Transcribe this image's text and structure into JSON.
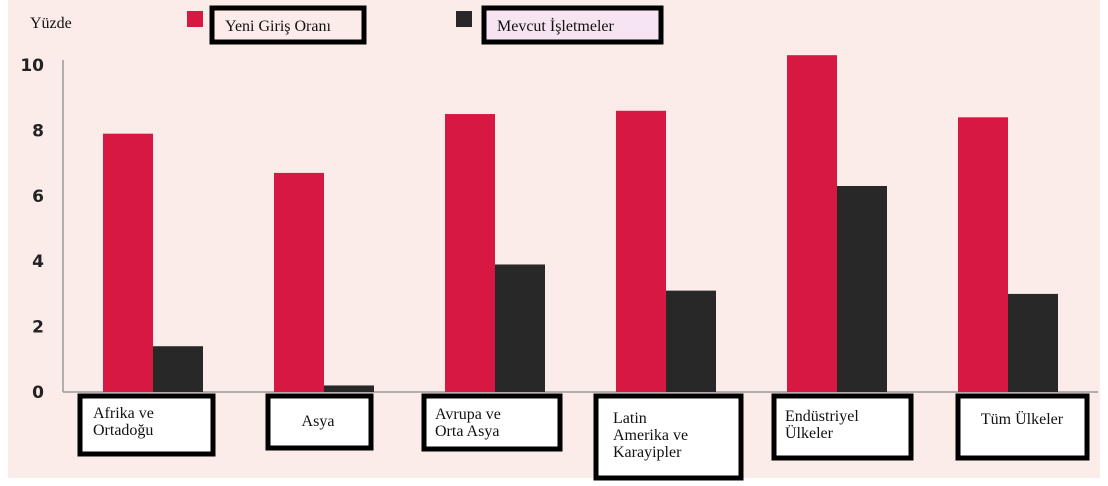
{
  "chart_data": {
    "type": "bar",
    "unit_label": "Yüzde",
    "categories": [
      [
        "Afrika ve",
        "Ortadoğu"
      ],
      [
        "Asya"
      ],
      [
        "Avrupa ve",
        "Orta Asya"
      ],
      [
        "Latin",
        "Amerika ve",
        "Karayipler"
      ],
      [
        "Endüstriyel",
        "Ülkeler"
      ],
      [
        "Tüm Ülkeler"
      ]
    ],
    "series": [
      {
        "name": "Yeni Giriş Oranı",
        "color": "#d61843",
        "values": [
          7.9,
          6.7,
          8.5,
          8.6,
          10.3,
          8.4
        ]
      },
      {
        "name": "Mevcut İşletmeler",
        "color": "#282828",
        "values": [
          1.4,
          0.2,
          3.9,
          3.1,
          6.3,
          3.0
        ]
      }
    ],
    "yticks": [
      "0",
      "2",
      "4",
      "6",
      "8",
      "10"
    ],
    "ylim": [
      0,
      10.5
    ],
    "grid": false,
    "legend_position": "top",
    "background_color": "#fbecea"
  }
}
